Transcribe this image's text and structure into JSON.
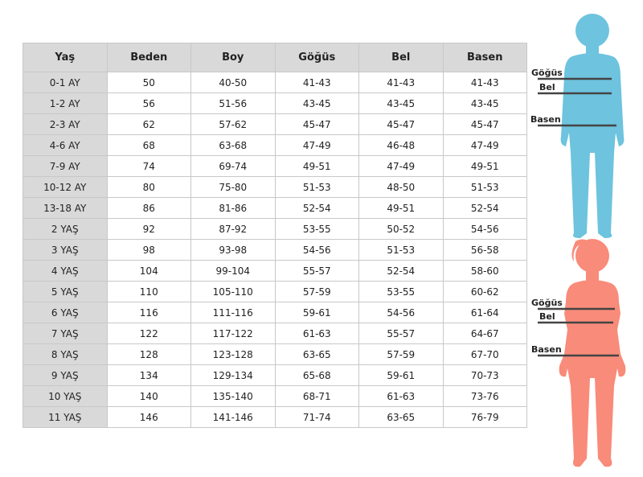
{
  "table": {
    "headers": [
      "Yaş",
      "Beden",
      "Boy",
      "Göğüs",
      "Bel",
      "Basen"
    ],
    "rows": [
      [
        "0-1 AY",
        "50",
        "40-50",
        "41-43",
        "41-43",
        "41-43"
      ],
      [
        "1-2 AY",
        "56",
        "51-56",
        "43-45",
        "43-45",
        "43-45"
      ],
      [
        "2-3 AY",
        "62",
        "57-62",
        "45-47",
        "45-47",
        "45-47"
      ],
      [
        "4-6 AY",
        "68",
        "63-68",
        "47-49",
        "46-48",
        "47-49"
      ],
      [
        "7-9 AY",
        "74",
        "69-74",
        "49-51",
        "47-49",
        "49-51"
      ],
      [
        "10-12 AY",
        "80",
        "75-80",
        "51-53",
        "48-50",
        "51-53"
      ],
      [
        "13-18 AY",
        "86",
        "81-86",
        "52-54",
        "49-51",
        "52-54"
      ],
      [
        "2 YAŞ",
        "92",
        "87-92",
        "53-55",
        "50-52",
        "54-56"
      ],
      [
        "3 YAŞ",
        "98",
        "93-98",
        "54-56",
        "51-53",
        "56-58"
      ],
      [
        "4 YAŞ",
        "104",
        "99-104",
        "55-57",
        "52-54",
        "58-60"
      ],
      [
        "5 YAŞ",
        "110",
        "105-110",
        "57-59",
        "53-55",
        "60-62"
      ],
      [
        "6 YAŞ",
        "116",
        "111-116",
        "59-61",
        "54-56",
        "61-64"
      ],
      [
        "7 YAŞ",
        "122",
        "117-122",
        "61-63",
        "55-57",
        "64-67"
      ],
      [
        "8 YAŞ",
        "128",
        "123-128",
        "63-65",
        "57-59",
        "67-70"
      ],
      [
        "9 YAŞ",
        "134",
        "129-134",
        "65-68",
        "59-61",
        "70-73"
      ],
      [
        "10 YAŞ",
        "140",
        "135-140",
        "68-71",
        "61-63",
        "73-76"
      ],
      [
        "11 YAŞ",
        "146",
        "141-146",
        "71-74",
        "63-65",
        "76-79"
      ]
    ]
  },
  "figures": {
    "boy": {
      "color": "#6ec3de",
      "labels": [
        "Göğüs",
        "Bel",
        "Basen"
      ]
    },
    "girl": {
      "color": "#f98b7a",
      "labels": [
        "Göğüs",
        "Bel",
        "Basen"
      ]
    }
  }
}
